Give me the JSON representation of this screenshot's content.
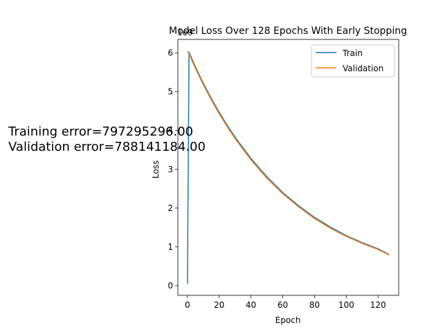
{
  "chart_data": {
    "type": "line",
    "title": "Model Loss Over 128 Epochs With Early Stopping",
    "xlabel": "Epoch",
    "ylabel": "Loss",
    "y_offset_label": "1e9",
    "xlim": [
      -6,
      133
    ],
    "ylim": [
      -0.25,
      6.35
    ],
    "xticks": [
      0,
      20,
      40,
      60,
      80,
      100,
      120
    ],
    "yticks": [
      0,
      1,
      2,
      3,
      4,
      5,
      6
    ],
    "legend_position": "top-right",
    "series": [
      {
        "name": "Train",
        "color": "#1f77b4",
        "x": [
          0,
          1,
          3,
          6,
          10,
          15,
          20,
          25,
          30,
          40,
          50,
          60,
          70,
          80,
          90,
          100,
          110,
          120,
          127
        ],
        "y": [
          0.05,
          6.02,
          5.83,
          5.56,
          5.22,
          4.83,
          4.47,
          4.14,
          3.83,
          3.28,
          2.81,
          2.4,
          2.06,
          1.76,
          1.51,
          1.29,
          1.11,
          0.95,
          0.8
        ]
      },
      {
        "name": "Validation",
        "color": "#ff7f0e",
        "x": [
          0,
          1,
          3,
          6,
          10,
          15,
          20,
          25,
          30,
          40,
          50,
          60,
          70,
          80,
          90,
          100,
          110,
          120,
          127
        ],
        "y": [
          6.05,
          5.98,
          5.79,
          5.52,
          5.18,
          4.79,
          4.43,
          4.1,
          3.79,
          3.24,
          2.77,
          2.37,
          2.03,
          1.73,
          1.48,
          1.27,
          1.09,
          0.93,
          0.79
        ]
      }
    ],
    "annotations": [
      "Training error=797295296.00",
      "Validation error=788141184.00"
    ]
  }
}
